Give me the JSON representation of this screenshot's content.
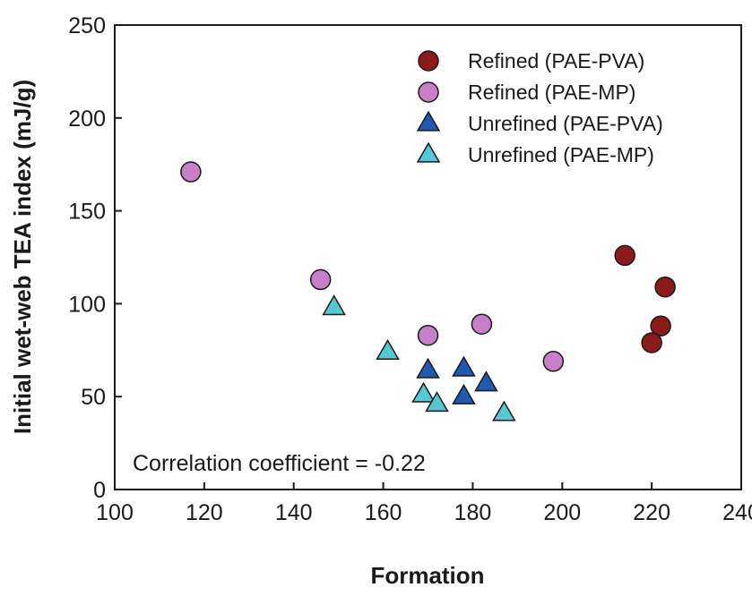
{
  "chart_data": {
    "type": "scatter",
    "title": "",
    "xlabel": "Formation",
    "ylabel": "Initial wet-web TEA index (mJ/g)",
    "xlim": [
      100,
      240
    ],
    "ylim": [
      0,
      250
    ],
    "xticks": [
      100,
      120,
      140,
      160,
      180,
      200,
      220,
      240
    ],
    "yticks": [
      0,
      50,
      100,
      150,
      200,
      250
    ],
    "grid": false,
    "legend_position": "top-right",
    "annotation": "Correlation coefficient = -0.22",
    "series": [
      {
        "name": "Refined (PAE-PVA)",
        "marker": "circle",
        "color": "#8b1a1a",
        "points": [
          {
            "x": 214,
            "y": 126
          },
          {
            "x": 223,
            "y": 109
          },
          {
            "x": 222,
            "y": 88
          },
          {
            "x": 220,
            "y": 79
          }
        ]
      },
      {
        "name": "Refined (PAE-MP)",
        "marker": "circle",
        "color": "#c77fc7",
        "points": [
          {
            "x": 117,
            "y": 171
          },
          {
            "x": 146,
            "y": 113
          },
          {
            "x": 170,
            "y": 83
          },
          {
            "x": 182,
            "y": 89
          },
          {
            "x": 198,
            "y": 69
          }
        ]
      },
      {
        "name": "Unrefined (PAE-PVA)",
        "marker": "triangle",
        "color": "#2158b0",
        "points": [
          {
            "x": 170,
            "y": 64
          },
          {
            "x": 178,
            "y": 65
          },
          {
            "x": 183,
            "y": 57
          },
          {
            "x": 178,
            "y": 50
          }
        ]
      },
      {
        "name": "Unrefined (PAE-MP)",
        "marker": "triangle",
        "color": "#55c8d3",
        "points": [
          {
            "x": 149,
            "y": 98
          },
          {
            "x": 161,
            "y": 74
          },
          {
            "x": 169,
            "y": 51
          },
          {
            "x": 172,
            "y": 46
          },
          {
            "x": 187,
            "y": 41
          }
        ]
      }
    ]
  }
}
